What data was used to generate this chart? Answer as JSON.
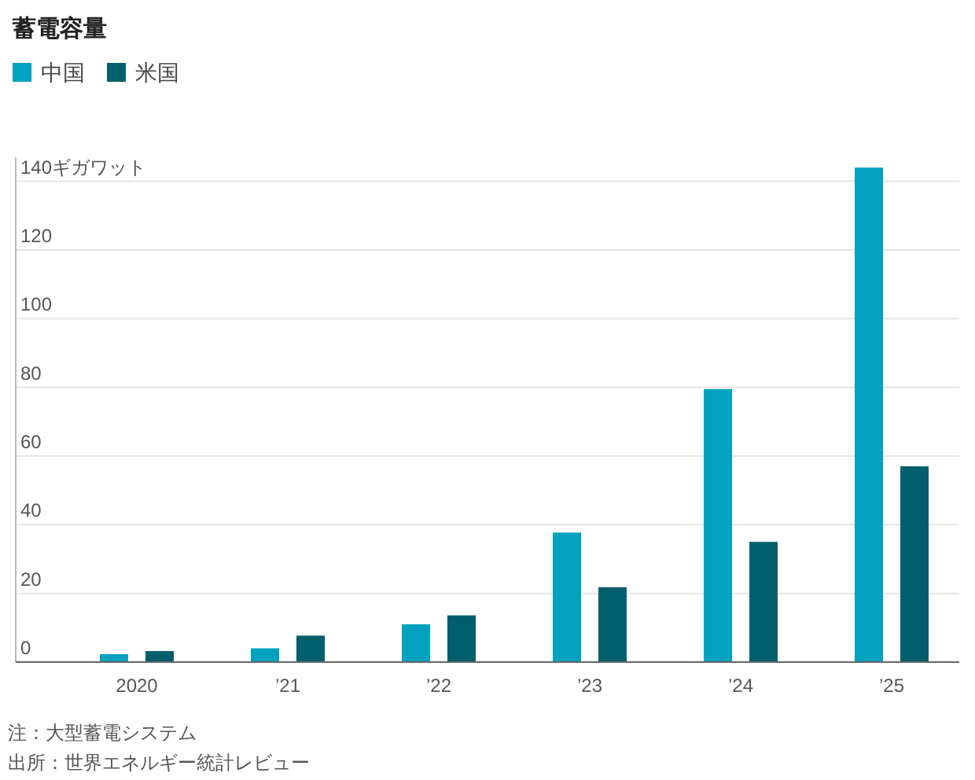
{
  "chart_data": {
    "type": "bar",
    "title": "蓄電容量",
    "categories": [
      "2020",
      "’21",
      "’22",
      "’23",
      "’24",
      "’25"
    ],
    "series": [
      {
        "name": "中国",
        "color": "#00a2bf",
        "values": [
          2.3,
          4,
          11,
          37.7,
          79.5,
          144
        ]
      },
      {
        "name": "米国",
        "color": "#005f6b",
        "values": [
          3.2,
          7.7,
          13.6,
          21.8,
          35,
          57
        ]
      }
    ],
    "ylim": [
      0,
      147
    ],
    "yticks": [
      0,
      20,
      40,
      60,
      80,
      100,
      120,
      {
        "value": 140,
        "label": "140ギガワット"
      }
    ],
    "grid": "y",
    "legend": "top left",
    "annotations": [
      "注：大型蓄電システム",
      "出所：世界エネルギー統計レビュー"
    ]
  }
}
